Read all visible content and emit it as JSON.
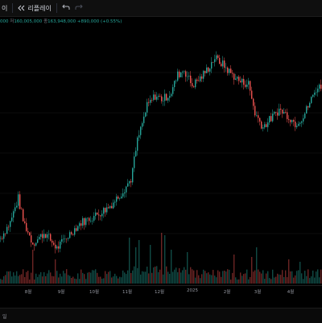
{
  "toolbar": {
    "tail": "이",
    "replay_icon": "replay-icon",
    "replay_label": "리플레이",
    "undo_icon": "undo-arrow-icon",
    "redo_icon": "redo-arrow-icon"
  },
  "legend": {
    "prefix": "000",
    "low_label": "저",
    "low_value": "160,005,000",
    "close_label": "종",
    "close_value": "163,948,000",
    "change": "+890,000 (+0.55%)"
  },
  "footer": {
    "label": "일"
  },
  "colors": {
    "up": "#26a69a",
    "down": "#ef5350",
    "bg": "#000000",
    "grid": "#1a1a1a"
  },
  "chart_data": {
    "type": "candlestick",
    "x_ticks": [
      "8월",
      "9월",
      "10월",
      "11월",
      "12월",
      "2025",
      "2월",
      "3월",
      "4월"
    ],
    "close_anchors": [
      {
        "d": 0,
        "c": 86
      },
      {
        "d": 12,
        "c": 95
      },
      {
        "d": 22,
        "c": 109
      },
      {
        "d": 28,
        "c": 96
      },
      {
        "d": 40,
        "c": 83
      },
      {
        "d": 55,
        "c": 89
      },
      {
        "d": 70,
        "c": 80
      },
      {
        "d": 85,
        "c": 88
      },
      {
        "d": 100,
        "c": 95
      },
      {
        "d": 118,
        "c": 99
      },
      {
        "d": 135,
        "c": 104
      },
      {
        "d": 150,
        "c": 112
      },
      {
        "d": 162,
        "c": 120
      },
      {
        "d": 170,
        "c": 142
      },
      {
        "d": 182,
        "c": 162
      },
      {
        "d": 192,
        "c": 168
      },
      {
        "d": 202,
        "c": 166
      },
      {
        "d": 212,
        "c": 170
      },
      {
        "d": 220,
        "c": 180
      },
      {
        "d": 228,
        "c": 183
      },
      {
        "d": 238,
        "c": 174
      },
      {
        "d": 248,
        "c": 178
      },
      {
        "d": 258,
        "c": 184
      },
      {
        "d": 266,
        "c": 190
      },
      {
        "d": 276,
        "c": 186
      },
      {
        "d": 286,
        "c": 181
      },
      {
        "d": 298,
        "c": 176
      },
      {
        "d": 308,
        "c": 175
      },
      {
        "d": 316,
        "c": 158
      },
      {
        "d": 326,
        "c": 150
      },
      {
        "d": 336,
        "c": 155
      },
      {
        "d": 346,
        "c": 160
      },
      {
        "d": 356,
        "c": 157
      },
      {
        "d": 366,
        "c": 152
      },
      {
        "d": 376,
        "c": 156
      },
      {
        "d": 384,
        "c": 164
      },
      {
        "d": 392,
        "c": 172
      },
      {
        "d": 400,
        "c": 174
      }
    ],
    "y_range": [
      70,
      200
    ],
    "volume_range": [
      0,
      100
    ]
  }
}
